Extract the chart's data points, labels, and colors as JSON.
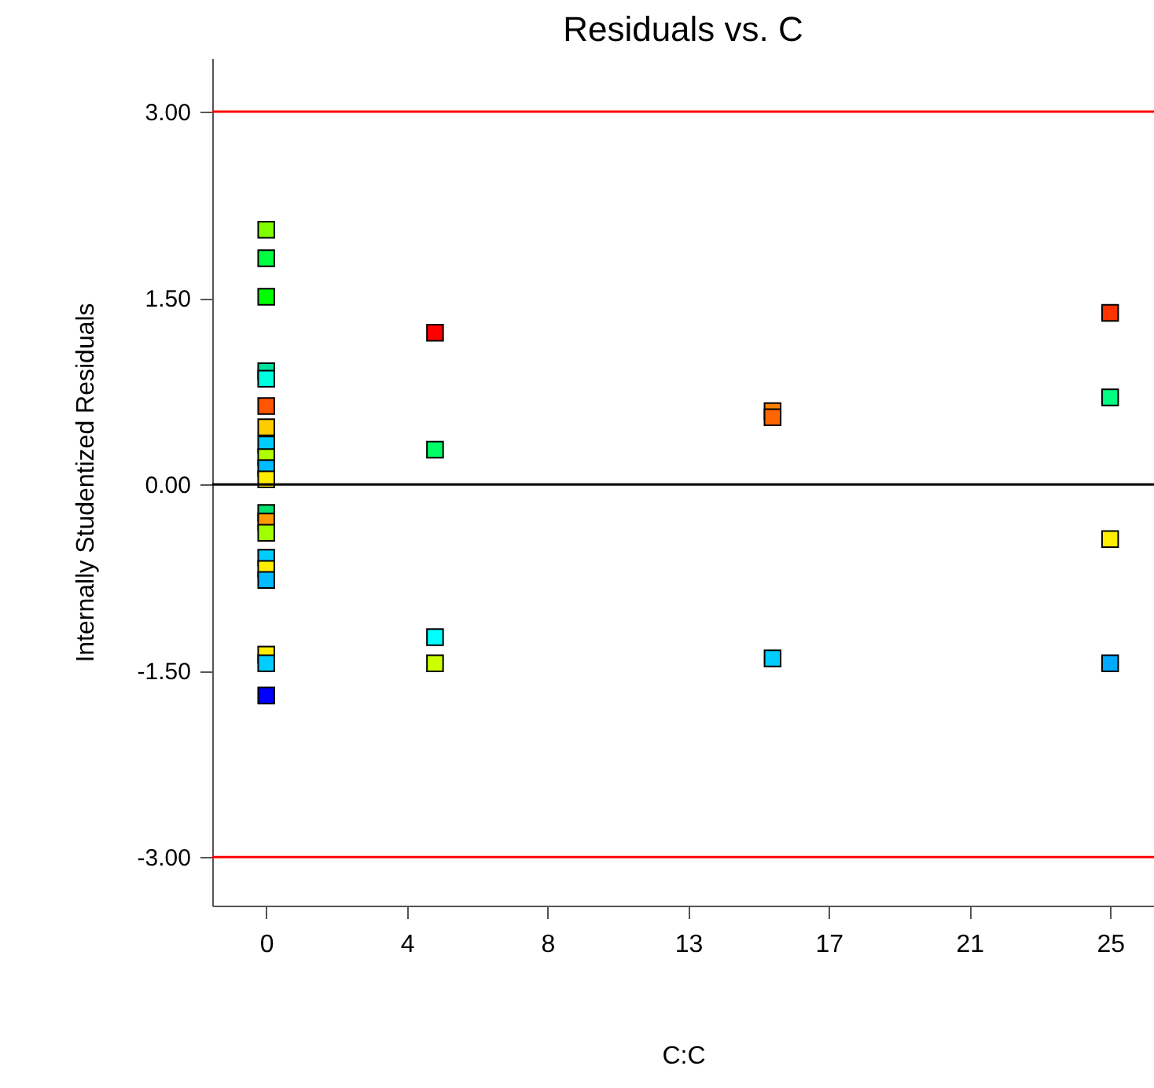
{
  "chart_data": {
    "type": "scatter",
    "title": "Residuals vs. C",
    "xlabel": "C:C",
    "ylabel": "Internally Studentized Residuals",
    "x": [
      0,
      0,
      0,
      0,
      0,
      0,
      0,
      0,
      0,
      0,
      0,
      0,
      0,
      0,
      0,
      0,
      0,
      0,
      0,
      0,
      5,
      5,
      5,
      5,
      15,
      15,
      15,
      25,
      25,
      25,
      25
    ],
    "values": [
      2.05,
      1.82,
      1.51,
      0.91,
      0.85,
      0.63,
      0.46,
      0.32,
      0.22,
      0.13,
      0.04,
      -0.23,
      -0.3,
      -0.39,
      -0.59,
      -0.68,
      -0.77,
      -1.37,
      -1.44,
      -1.7,
      1.22,
      0.28,
      -1.23,
      -1.44,
      0.59,
      0.54,
      -1.4,
      1.38,
      0.7,
      -0.44,
      -1.44
    ],
    "colors": [
      "#80ff00",
      "#00ff40",
      "#00ff00",
      "#00e0a0",
      "#00ffe0",
      "#ff5500",
      "#ffcc00",
      "#00ccff",
      "#b0ff00",
      "#00bbff",
      "#ffee00",
      "#00e070",
      "#ff9900",
      "#a0ff00",
      "#00ccff",
      "#ffee00",
      "#00bbff",
      "#ffee00",
      "#00ccff",
      "#0000ff",
      "#ff0000",
      "#00ff66",
      "#00ffff",
      "#ccff00",
      "#ff8000",
      "#ff6600",
      "#00ccff",
      "#ff3300",
      "#00ff80",
      "#ffee00",
      "#00aaff"
    ],
    "marker": "square",
    "grid": false,
    "xlim": [
      -1.6,
      26.3
    ],
    "xticks": [
      0,
      {
        "value": 4.1667,
        "label": "4"
      },
      {
        "value": 8.3333,
        "label": "8"
      },
      {
        "value": 12.5,
        "label": "13"
      },
      {
        "value": 16.6667,
        "label": "17"
      },
      {
        "value": 20.8333,
        "label": "21"
      },
      25
    ],
    "ylim": [
      -3.39,
      3.43
    ],
    "yticks": [
      {
        "value": -3,
        "label": "-3.00"
      },
      {
        "value": -1.5,
        "label": "-1.50"
      },
      {
        "value": 0,
        "label": "0.00"
      },
      {
        "value": 1.5,
        "label": "1.50"
      },
      {
        "value": 3,
        "label": "3.00"
      }
    ],
    "ref_lines": [
      {
        "axis": "y",
        "value": 3,
        "color": "#ff0000"
      },
      {
        "axis": "y",
        "value": 0,
        "color": "#000000"
      },
      {
        "axis": "y",
        "value": -3,
        "color": "#ff0000"
      }
    ]
  }
}
